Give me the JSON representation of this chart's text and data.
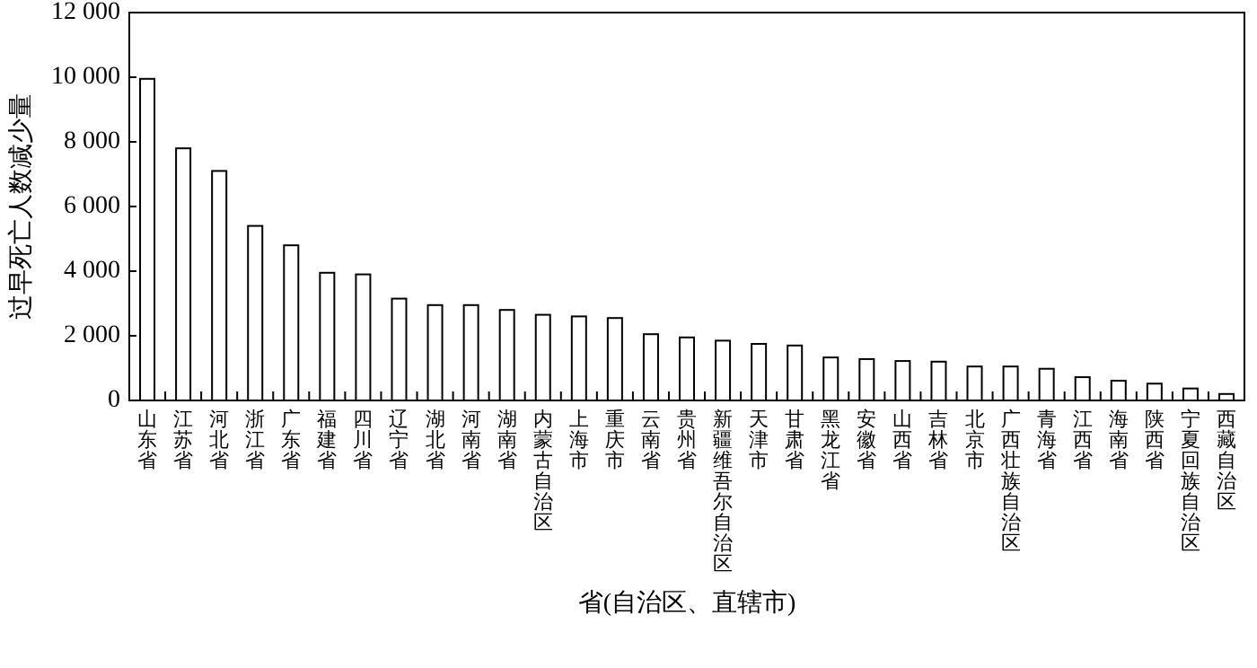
{
  "chart_data": {
    "type": "bar",
    "xlabel": "省(自治区、直辖市)",
    "ylabel": "过早死亡人数减少量",
    "categories": [
      "山东省",
      "江苏省",
      "河北省",
      "浙江省",
      "广东省",
      "福建省",
      "四川省",
      "辽宁省",
      "湖北省",
      "河南省",
      "湖南省",
      "内蒙古自治区",
      "上海市",
      "重庆市",
      "云南省",
      "贵州省",
      "新疆维吾尔自治区",
      "天津市",
      "甘肃省",
      "黑龙江省",
      "安徽省",
      "山西省",
      "吉林省",
      "北京市",
      "广西壮族自治区",
      "青海省",
      "江西省",
      "海南省",
      "陕西省",
      "宁夏回族自治区",
      "西藏自治区"
    ],
    "values": [
      9950,
      7800,
      7100,
      5400,
      4800,
      3950,
      3900,
      3150,
      2950,
      2950,
      2800,
      2650,
      2600,
      2550,
      2050,
      1950,
      1850,
      1750,
      1700,
      1330,
      1280,
      1220,
      1200,
      1050,
      1050,
      980,
      720,
      610,
      520,
      370,
      200
    ],
    "color": "#ffffff",
    "ylim": [
      0,
      12000
    ],
    "yticks": [
      0,
      {
        "value": 2000,
        "label": "2 000"
      },
      {
        "value": 4000,
        "label": "4 000"
      },
      {
        "value": 6000,
        "label": "6 000"
      },
      {
        "value": 8000,
        "label": "8 000"
      },
      {
        "value": 10000,
        "label": "10 000"
      },
      {
        "value": 12000,
        "label": "12 000"
      }
    ],
    "grid": false
  }
}
